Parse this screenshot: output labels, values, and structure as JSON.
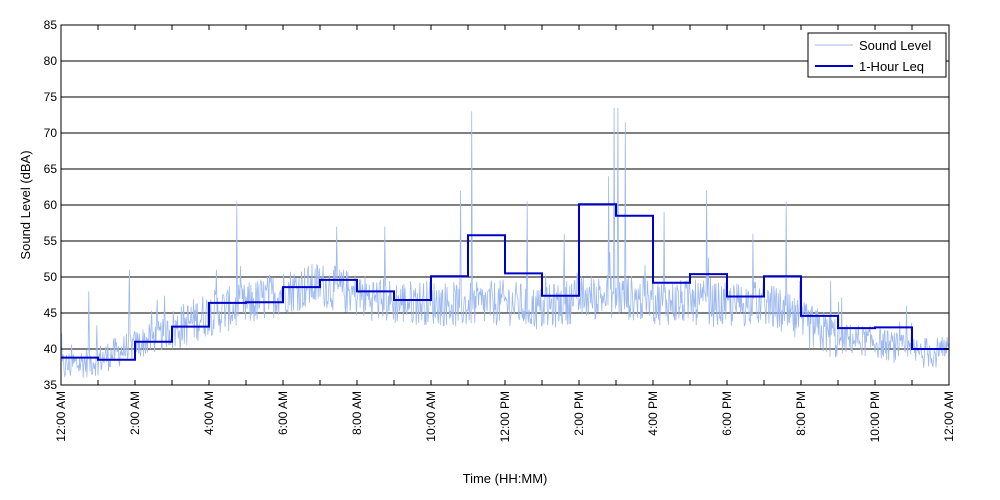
{
  "chart_data": {
    "type": "line",
    "xlabel": "Time (HH:MM)",
    "ylabel": "Sound Level (dBA)",
    "xlim_hours": [
      0,
      24
    ],
    "ylim": [
      35,
      85
    ],
    "yticks": [
      35,
      40,
      45,
      50,
      55,
      60,
      65,
      70,
      75,
      80,
      85
    ],
    "xticks": [
      {
        "hour": 0,
        "label": "12:00 AM"
      },
      {
        "hour": 2,
        "label": "2:00 AM"
      },
      {
        "hour": 4,
        "label": "4:00 AM"
      },
      {
        "hour": 6,
        "label": "6:00 AM"
      },
      {
        "hour": 8,
        "label": "8:00 AM"
      },
      {
        "hour": 10,
        "label": "10:00 AM"
      },
      {
        "hour": 12,
        "label": "12:00 PM"
      },
      {
        "hour": 14,
        "label": "2:00 PM"
      },
      {
        "hour": 16,
        "label": "4:00 PM"
      },
      {
        "hour": 18,
        "label": "6:00 PM"
      },
      {
        "hour": 20,
        "label": "8:00 PM"
      },
      {
        "hour": 22,
        "label": "10:00 PM"
      },
      {
        "hour": 24,
        "label": "12:00 AM"
      }
    ],
    "grid": "horizontal",
    "legend_position": "top-right",
    "series": [
      {
        "name": "Sound Level",
        "color": "#9db9f0",
        "style": "thin noisy line",
        "baseline_by_hour": [
          37.5,
          38.5,
          40.5,
          42.5,
          45,
          46,
          48,
          49,
          47.5,
          46.5,
          46.5,
          46,
          46.5,
          45.5,
          47,
          47.5,
          46.5,
          46.5,
          46,
          46.5,
          43.5,
          41.5,
          41,
          39.5
        ],
        "peaks": [
          {
            "hour": 0.75,
            "value": 48
          },
          {
            "hour": 1.85,
            "value": 51
          },
          {
            "hour": 4.2,
            "value": 51
          },
          {
            "hour": 4.75,
            "value": 60.5
          },
          {
            "hour": 7.45,
            "value": 57
          },
          {
            "hour": 8.75,
            "value": 57
          },
          {
            "hour": 10.8,
            "value": 62
          },
          {
            "hour": 11.1,
            "value": 73
          },
          {
            "hour": 12.6,
            "value": 60.5
          },
          {
            "hour": 13.6,
            "value": 56
          },
          {
            "hour": 14.8,
            "value": 64
          },
          {
            "hour": 14.95,
            "value": 73.5
          },
          {
            "hour": 15.05,
            "value": 73.5
          },
          {
            "hour": 15.25,
            "value": 71.5
          },
          {
            "hour": 16.3,
            "value": 59
          },
          {
            "hour": 17.45,
            "value": 62
          },
          {
            "hour": 18.7,
            "value": 56
          },
          {
            "hour": 19.6,
            "value": 60.5
          },
          {
            "hour": 20.8,
            "value": 49.5
          },
          {
            "hour": 22.85,
            "value": 46
          }
        ]
      },
      {
        "name": "1-Hour Leq",
        "color": "#0000cc",
        "style": "step",
        "hourly_values": [
          38.8,
          38.5,
          41.0,
          43.1,
          46.4,
          46.5,
          48.6,
          49.6,
          48.0,
          46.8,
          50.1,
          55.8,
          50.5,
          47.4,
          60.1,
          58.5,
          49.2,
          50.4,
          47.3,
          50.1,
          44.6,
          42.9,
          43.0,
          40.0
        ]
      }
    ]
  }
}
